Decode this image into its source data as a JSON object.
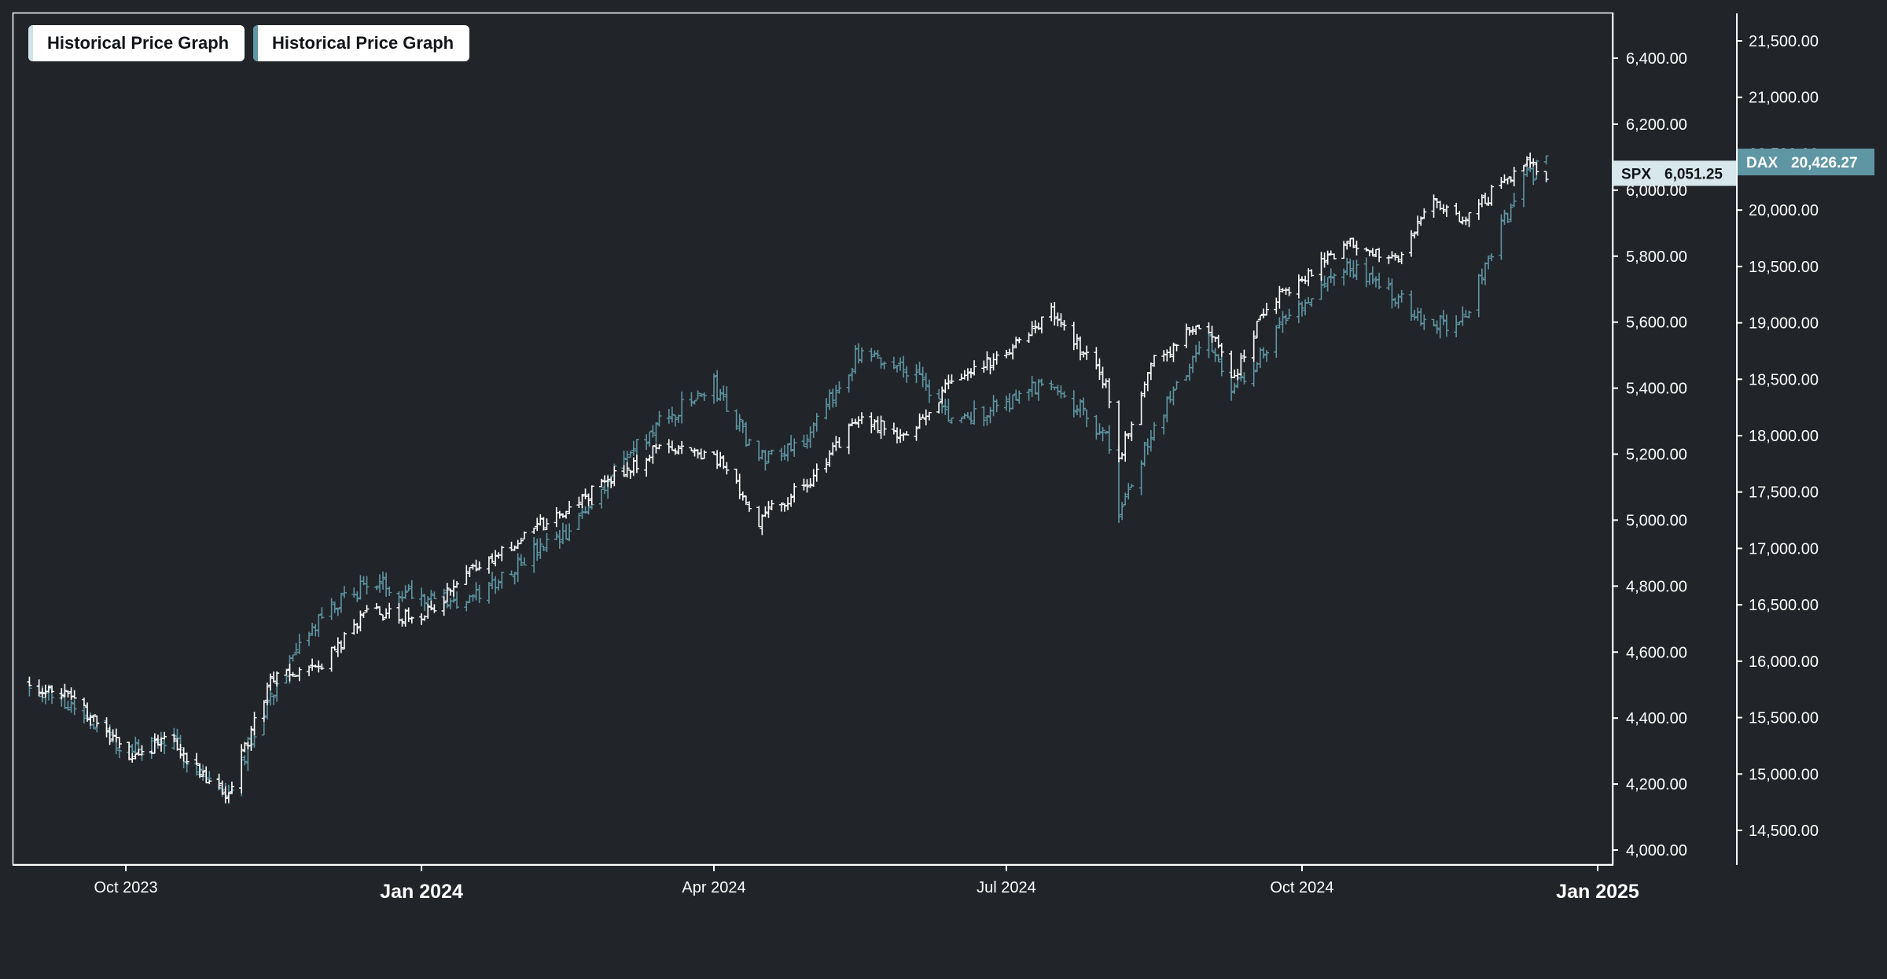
{
  "legend": {
    "items": [
      {
        "label": "Historical Price Graph",
        "color": "#ffffff"
      },
      {
        "label": "Historical Price Graph",
        "color": "#5f96a3"
      }
    ]
  },
  "chart_data": {
    "type": "ohlc",
    "series": [
      {
        "name": "SPX",
        "color": "#ffffff",
        "last_value": "6,051.25",
        "axis": "left",
        "monthly_closes": [
          {
            "date": "2023-09-01",
            "value": 4510
          },
          {
            "date": "2023-09-15",
            "value": 4450
          },
          {
            "date": "2023-10-01",
            "value": 4290
          },
          {
            "date": "2023-10-15",
            "value": 4330
          },
          {
            "date": "2023-11-01",
            "value": 4160
          },
          {
            "date": "2023-11-15",
            "value": 4510
          },
          {
            "date": "2023-12-01",
            "value": 4560
          },
          {
            "date": "2023-12-15",
            "value": 4720
          },
          {
            "date": "2024-01-01",
            "value": 4700
          },
          {
            "date": "2024-01-15",
            "value": 4830
          },
          {
            "date": "2024-02-01",
            "value": 4950
          },
          {
            "date": "2024-02-15",
            "value": 5030
          },
          {
            "date": "2024-03-01",
            "value": 5130
          },
          {
            "date": "2024-03-15",
            "value": 5220
          },
          {
            "date": "2024-04-01",
            "value": 5200
          },
          {
            "date": "2024-04-15",
            "value": 5000
          },
          {
            "date": "2024-05-01",
            "value": 5120
          },
          {
            "date": "2024-05-15",
            "value": 5300
          },
          {
            "date": "2024-06-01",
            "value": 5260
          },
          {
            "date": "2024-06-15",
            "value": 5440
          },
          {
            "date": "2024-07-01",
            "value": 5500
          },
          {
            "date": "2024-07-15",
            "value": 5630
          },
          {
            "date": "2024-08-01",
            "value": 5420
          },
          {
            "date": "2024-08-05",
            "value": 5180
          },
          {
            "date": "2024-08-15",
            "value": 5480
          },
          {
            "date": "2024-09-01",
            "value": 5600
          },
          {
            "date": "2024-09-10",
            "value": 5430
          },
          {
            "date": "2024-09-20",
            "value": 5650
          },
          {
            "date": "2024-10-01",
            "value": 5730
          },
          {
            "date": "2024-10-15",
            "value": 5840
          },
          {
            "date": "2024-11-01",
            "value": 5800
          },
          {
            "date": "2024-11-10",
            "value": 5990
          },
          {
            "date": "2024-11-20",
            "value": 5900
          },
          {
            "date": "2024-12-01",
            "value": 6010
          },
          {
            "date": "2024-12-10",
            "value": 6080
          },
          {
            "date": "2024-12-16",
            "value": 6051.25
          }
        ]
      },
      {
        "name": "DAX",
        "color": "#5f96a3",
        "last_value": "20,426.27",
        "axis": "right",
        "monthly_closes": [
          {
            "date": "2023-09-01",
            "value": 15800
          },
          {
            "date": "2023-09-15",
            "value": 15600
          },
          {
            "date": "2023-10-01",
            "value": 15200
          },
          {
            "date": "2023-10-15",
            "value": 15300
          },
          {
            "date": "2023-11-01",
            "value": 14800
          },
          {
            "date": "2023-11-15",
            "value": 15700
          },
          {
            "date": "2023-12-01",
            "value": 16400
          },
          {
            "date": "2023-12-15",
            "value": 16700
          },
          {
            "date": "2024-01-01",
            "value": 16600
          },
          {
            "date": "2024-01-15",
            "value": 16500
          },
          {
            "date": "2024-02-01",
            "value": 16900
          },
          {
            "date": "2024-02-15",
            "value": 17100
          },
          {
            "date": "2024-03-01",
            "value": 17700
          },
          {
            "date": "2024-03-15",
            "value": 18100
          },
          {
            "date": "2024-04-01",
            "value": 18450
          },
          {
            "date": "2024-04-15",
            "value": 17800
          },
          {
            "date": "2024-05-01",
            "value": 18000
          },
          {
            "date": "2024-05-15",
            "value": 18700
          },
          {
            "date": "2024-06-01",
            "value": 18600
          },
          {
            "date": "2024-06-15",
            "value": 18100
          },
          {
            "date": "2024-07-01",
            "value": 18300
          },
          {
            "date": "2024-07-15",
            "value": 18500
          },
          {
            "date": "2024-08-01",
            "value": 18000
          },
          {
            "date": "2024-08-05",
            "value": 17300
          },
          {
            "date": "2024-08-15",
            "value": 18000
          },
          {
            "date": "2024-09-01",
            "value": 18900
          },
          {
            "date": "2024-09-10",
            "value": 18400
          },
          {
            "date": "2024-09-20",
            "value": 18800
          },
          {
            "date": "2024-10-01",
            "value": 19200
          },
          {
            "date": "2024-10-15",
            "value": 19500
          },
          {
            "date": "2024-11-01",
            "value": 19200
          },
          {
            "date": "2024-11-10",
            "value": 19000
          },
          {
            "date": "2024-11-20",
            "value": 19000
          },
          {
            "date": "2024-12-01",
            "value": 19800
          },
          {
            "date": "2024-12-10",
            "value": 20300
          },
          {
            "date": "2024-12-16",
            "value": 20426.27
          }
        ]
      }
    ],
    "x_axis": {
      "range": [
        "2023-08-27",
        "2025-01-01"
      ],
      "ticks": [
        {
          "date": "2023-10-01",
          "label": "Oct 2023",
          "major": false
        },
        {
          "date": "2024-01-01",
          "label": "Jan 2024",
          "major": true
        },
        {
          "date": "2024-04-01",
          "label": "Apr 2024",
          "major": false
        },
        {
          "date": "2024-07-01",
          "label": "Jul 2024",
          "major": false
        },
        {
          "date": "2024-10-01",
          "label": "Oct 2024",
          "major": false
        },
        {
          "date": "2025-01-01",
          "label": "Jan 2025",
          "major": true
        }
      ]
    },
    "y_axis_left": {
      "range": [
        3980,
        6570
      ],
      "ticks": [
        "4,000.00",
        "4,200.00",
        "4,400.00",
        "4,600.00",
        "4,800.00",
        "5,000.00",
        "5,200.00",
        "5,400.00",
        "5,600.00",
        "5,800.00",
        "6,000.00",
        "6,200.00",
        "6,400.00"
      ]
    },
    "y_axis_right": {
      "range": [
        14350,
        21700
      ],
      "ticks": [
        "14,500.00",
        "15,000.00",
        "15,500.00",
        "16,000.00",
        "16,500.00",
        "17,000.00",
        "17,500.00",
        "18,000.00",
        "18,500.00",
        "19,000.00",
        "19,500.00",
        "20,000.00",
        "20,500.00",
        "21,000.00",
        "21,500.00"
      ]
    },
    "grid": false,
    "legend_position": "top-left"
  }
}
